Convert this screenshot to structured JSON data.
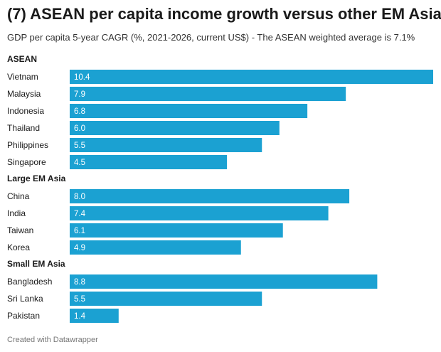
{
  "title": "(7) ASEAN per capita income growth versus other EM Asia",
  "subtitle": "GDP per capita 5-year CAGR (%, 2021-2026, current US$) - The ASEAN weighted average is 7.1%",
  "footer": "Created with Datawrapper",
  "chart_data": {
    "type": "bar",
    "orientation": "horizontal",
    "bar_color": "#1ba1d2",
    "xlim": [
      0,
      10.4
    ],
    "grid": false,
    "groups": [
      {
        "name": "ASEAN",
        "categories": [
          "Vietnam",
          "Malaysia",
          "Indonesia",
          "Thailand",
          "Philippines",
          "Singapore"
        ],
        "values": [
          10.4,
          7.9,
          6.8,
          6.0,
          5.5,
          4.5
        ]
      },
      {
        "name": "Large EM Asia",
        "categories": [
          "China",
          "India",
          "Taiwan",
          "Korea"
        ],
        "values": [
          8.0,
          7.4,
          6.1,
          4.9
        ]
      },
      {
        "name": "Small EM Asia",
        "categories": [
          "Bangladesh",
          "Sri Lanka",
          "Pakistan"
        ],
        "values": [
          8.8,
          5.5,
          1.4
        ]
      }
    ]
  }
}
